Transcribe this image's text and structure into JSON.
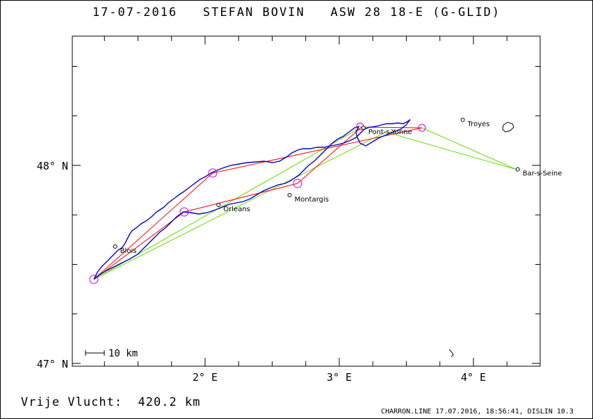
{
  "header": {
    "date": "17-07-2016",
    "pilot": "STEFAN BOVIN",
    "glider": "ASW 28 18-E (G-GLID)"
  },
  "footer": {
    "distance_label": "Vrije Vlucht:",
    "distance_value": "420.2 km",
    "credit": "CHARRON.LINE 17.07.2016, 18:56:41, DISLIN 10.3"
  },
  "map": {
    "x_ticks": [
      {
        "lon": 2,
        "label": "2° E"
      },
      {
        "lon": 3,
        "label": "3° E"
      },
      {
        "lon": 4,
        "label": "4° E"
      }
    ],
    "y_ticks": [
      {
        "lat": 48,
        "label": "48° N"
      },
      {
        "lat": 47,
        "label": "47° N"
      }
    ],
    "scale_bar": "10 km",
    "colors": {
      "track": "#0000cc",
      "task_line": "#ff0000",
      "start_line": "#66dd00",
      "turnpoint": "#cc00cc"
    },
    "cities": [
      {
        "name": "Blois",
        "lon": 1.33,
        "lat": 47.59
      },
      {
        "name": "Orleans",
        "lon": 2.1,
        "lat": 47.8
      },
      {
        "name": "Montargis",
        "lon": 2.63,
        "lat": 47.85
      },
      {
        "name": "Pont-s-Yonne",
        "lon": 3.18,
        "lat": 48.19
      },
      {
        "name": "Troyes",
        "lon": 3.92,
        "lat": 48.23
      },
      {
        "name": "Bar-s-Seine",
        "lon": 4.33,
        "lat": 47.98
      }
    ]
  }
}
